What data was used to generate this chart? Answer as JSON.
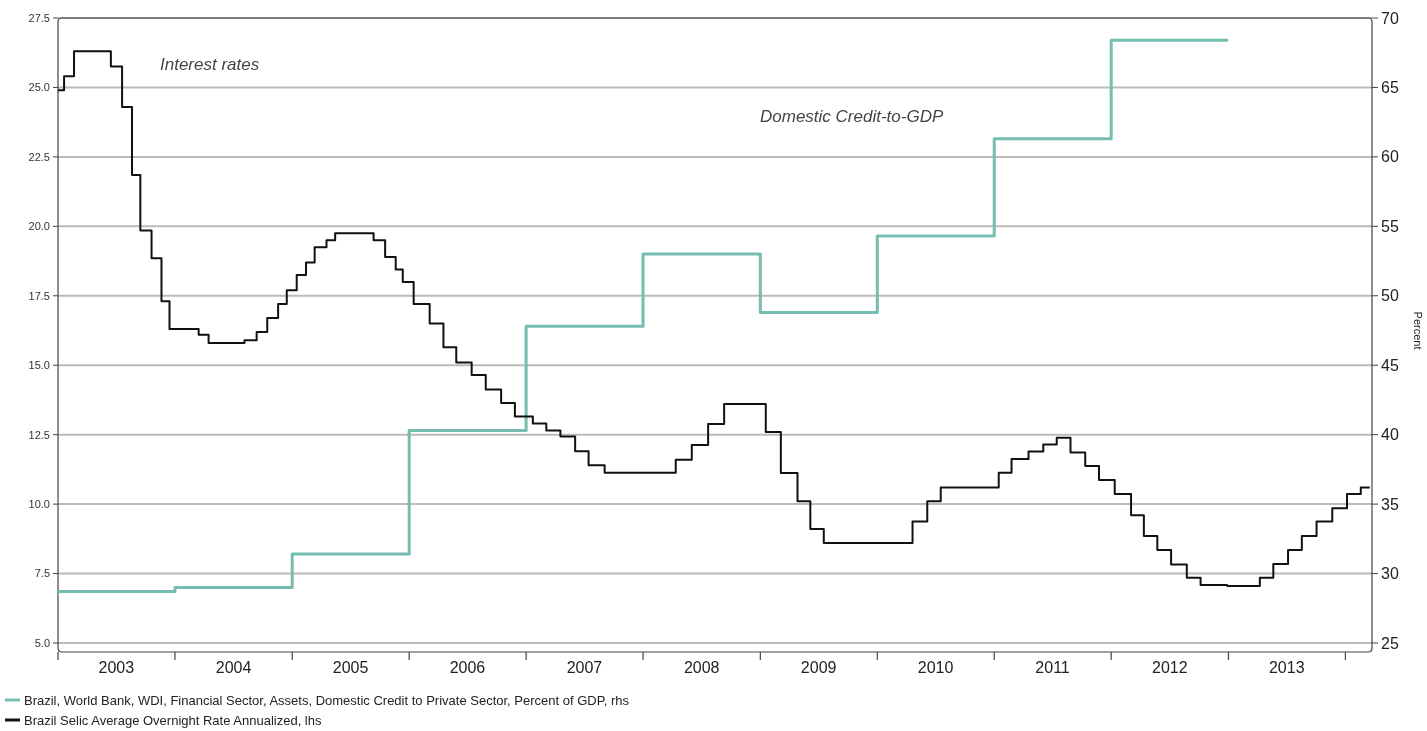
{
  "chart_data": {
    "type": "step",
    "series": [
      {
        "name": "Brazil, World Bank, WDI, Financial Sector, Assets, Domestic Credit to Private Sector, Percent of GDP, rhs",
        "color": "#76bdb1",
        "axis": "y2",
        "x": [
          "2003-01-01",
          "2004-01-01",
          "2005-01-01",
          "2006-01-01",
          "2007-01-01",
          "2008-01-01",
          "2009-01-01",
          "2010-01-01",
          "2011-01-01",
          "2012-01-01",
          "2012-12-31"
        ],
        "values": [
          28.7,
          29.0,
          31.4,
          40.3,
          47.8,
          53.0,
          48.8,
          54.3,
          61.3,
          68.4,
          68.4
        ]
      },
      {
        "name": "Brazil Selic Average Overnight Rate Annualized, lhs",
        "color": "#111111",
        "axis": "y",
        "x": [
          "2003-01-01",
          "2003-01-20",
          "2003-02-20",
          "2003-06-15",
          "2003-07-20",
          "2003-08-20",
          "2003-09-15",
          "2003-10-20",
          "2003-11-20",
          "2003-12-15",
          "2004-03-15",
          "2004-04-15",
          "2004-08-05",
          "2004-09-12",
          "2004-10-15",
          "2004-11-18",
          "2004-12-15",
          "2005-01-15",
          "2005-02-13",
          "2005-03-12",
          "2005-04-18",
          "2005-05-15",
          "2005-09-12",
          "2005-10-18",
          "2005-11-20",
          "2005-12-12",
          "2006-01-15",
          "2006-03-06",
          "2006-04-18",
          "2006-05-28",
          "2006-07-15",
          "2006-08-28",
          "2006-10-15",
          "2006-11-27",
          "2007-01-22",
          "2007-03-05",
          "2007-04-18",
          "2007-06-03",
          "2007-07-15",
          "2007-09-03",
          "2008-04-12",
          "2008-06-01",
          "2008-07-22",
          "2008-09-10",
          "2009-01-18",
          "2009-03-06",
          "2009-04-27",
          "2009-06-06",
          "2009-07-18",
          "2010-04-21",
          "2010-06-06",
          "2010-07-18",
          "2011-01-15",
          "2011-02-24",
          "2011-04-18",
          "2011-06-03",
          "2011-07-15",
          "2011-08-27",
          "2011-10-12",
          "2011-11-24",
          "2012-01-12",
          "2012-03-03",
          "2012-04-12",
          "2012-05-24",
          "2012-07-06",
          "2012-08-24",
          "2012-10-06",
          "2012-12-28",
          "2013-04-09",
          "2013-05-21",
          "2013-07-06",
          "2013-08-18",
          "2013-10-03",
          "2013-11-21",
          "2014-01-06",
          "2014-02-18",
          "2014-03-18"
        ],
        "values": [
          24.9,
          25.4,
          26.3,
          25.75,
          24.3,
          21.85,
          19.85,
          18.85,
          17.3,
          16.3,
          16.1,
          15.8,
          15.9,
          16.2,
          16.7,
          17.2,
          17.7,
          18.25,
          18.7,
          19.25,
          19.5,
          19.75,
          19.5,
          18.9,
          18.45,
          18.0,
          17.2,
          16.5,
          15.65,
          15.1,
          14.65,
          14.13,
          13.64,
          13.15,
          12.9,
          12.65,
          12.43,
          11.9,
          11.4,
          11.13,
          11.6,
          12.13,
          12.88,
          13.6,
          12.6,
          11.12,
          10.1,
          9.1,
          8.6,
          9.37,
          10.1,
          10.6,
          11.13,
          11.62,
          11.89,
          12.15,
          12.39,
          11.86,
          11.37,
          10.87,
          10.36,
          9.6,
          8.85,
          8.35,
          7.83,
          7.35,
          7.09,
          7.05,
          7.35,
          7.84,
          8.35,
          8.85,
          9.37,
          9.85,
          10.36,
          10.6,
          10.6
        ]
      }
    ],
    "xlim": [
      "2003-01-01",
      "2014-03-25"
    ],
    "xticks": [
      {
        "value": "2003-01-01",
        "label": null
      },
      {
        "value": "2003-07-02",
        "label": "2003"
      },
      {
        "value": "2004-01-01",
        "label": null
      },
      {
        "value": "2004-07-02",
        "label": "2004"
      },
      {
        "value": "2005-01-01",
        "label": null
      },
      {
        "value": "2005-07-02",
        "label": "2005"
      },
      {
        "value": "2006-01-01",
        "label": null
      },
      {
        "value": "2006-07-02",
        "label": "2006"
      },
      {
        "value": "2007-01-01",
        "label": null
      },
      {
        "value": "2007-07-02",
        "label": "2007"
      },
      {
        "value": "2008-01-01",
        "label": null
      },
      {
        "value": "2008-07-02",
        "label": "2008"
      },
      {
        "value": "2009-01-01",
        "label": null
      },
      {
        "value": "2009-07-02",
        "label": "2009"
      },
      {
        "value": "2010-01-01",
        "label": null
      },
      {
        "value": "2010-07-02",
        "label": "2010"
      },
      {
        "value": "2011-01-01",
        "label": null
      },
      {
        "value": "2011-07-02",
        "label": "2011"
      },
      {
        "value": "2012-01-01",
        "label": null
      },
      {
        "value": "2012-07-02",
        "label": "2012"
      },
      {
        "value": "2013-01-01",
        "label": null
      },
      {
        "value": "2013-07-02",
        "label": "2013"
      },
      {
        "value": "2014-01-01",
        "label": null
      }
    ],
    "ylim": [
      5,
      27.5
    ],
    "yticks": [
      {
        "value": 5,
        "label": "5.0"
      },
      {
        "value": 7.5,
        "label": "7.5"
      },
      {
        "value": 10,
        "label": "10.0"
      },
      {
        "value": 12.5,
        "label": "12.5"
      },
      {
        "value": 15,
        "label": "15.0"
      },
      {
        "value": 17.5,
        "label": "17.5"
      },
      {
        "value": 20,
        "label": "20.0"
      },
      {
        "value": 22.5,
        "label": "22.5"
      },
      {
        "value": 25,
        "label": "25.0"
      },
      {
        "value": 27.5,
        "label": "27.5"
      }
    ],
    "y2lim": [
      25,
      70
    ],
    "y2ticks": [
      25,
      30,
      35,
      40,
      45,
      50,
      55,
      60,
      65,
      70
    ],
    "y2label": "Percent",
    "annotations": [
      "Interest rates",
      "Domestic Credit-to-GDP"
    ],
    "grid": "y",
    "legend": "bottom"
  }
}
